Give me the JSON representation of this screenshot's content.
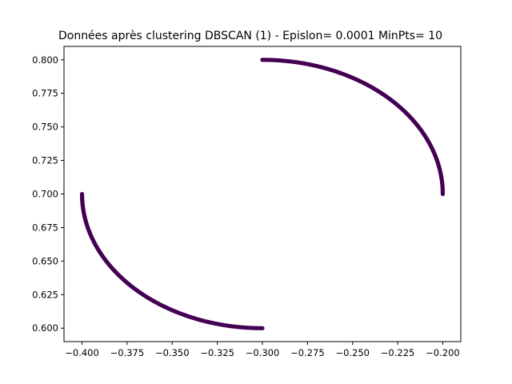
{
  "chart_data": {
    "type": "scatter",
    "title": "Données après clustering DBSCAN (1) - Epislon= 0.0001 MinPts= 10",
    "xlabel": "",
    "ylabel": "",
    "xlim": [
      -0.41,
      -0.19
    ],
    "ylim": [
      0.59,
      0.81
    ],
    "x_ticks": [
      -0.4,
      -0.375,
      -0.35,
      -0.325,
      -0.3,
      -0.275,
      -0.25,
      -0.225,
      -0.2
    ],
    "x_tick_labels": [
      "−0.400",
      "−0.375",
      "−0.350",
      "−0.325",
      "−0.300",
      "−0.275",
      "−0.250",
      "−0.225",
      "−0.200"
    ],
    "y_ticks": [
      0.6,
      0.625,
      0.65,
      0.675,
      0.7,
      0.725,
      0.75,
      0.775,
      0.8
    ],
    "y_tick_labels": [
      "0.600",
      "0.625",
      "0.650",
      "0.675",
      "0.700",
      "0.725",
      "0.750",
      "0.775",
      "0.800"
    ],
    "grid": false,
    "legend": "none",
    "marker_color": "#440154",
    "series": [
      {
        "cluster": 1,
        "arcs": [
          {
            "center": [
              -0.3,
              0.7
            ],
            "radius_x": 0.1,
            "radius_y": 0.1,
            "angle_start_deg": 90,
            "angle_end_deg": 0,
            "x_start": -0.3,
            "y_start": 0.8,
            "x_end": -0.2,
            "y_end": 0.7
          },
          {
            "center": [
              -0.3,
              0.7
            ],
            "radius_x": 0.1,
            "radius_y": 0.1,
            "angle_start_deg": 180,
            "angle_end_deg": 270,
            "x_start": -0.4,
            "y_start": 0.7,
            "x_end": -0.3,
            "y_end": 0.6
          }
        ]
      }
    ]
  }
}
